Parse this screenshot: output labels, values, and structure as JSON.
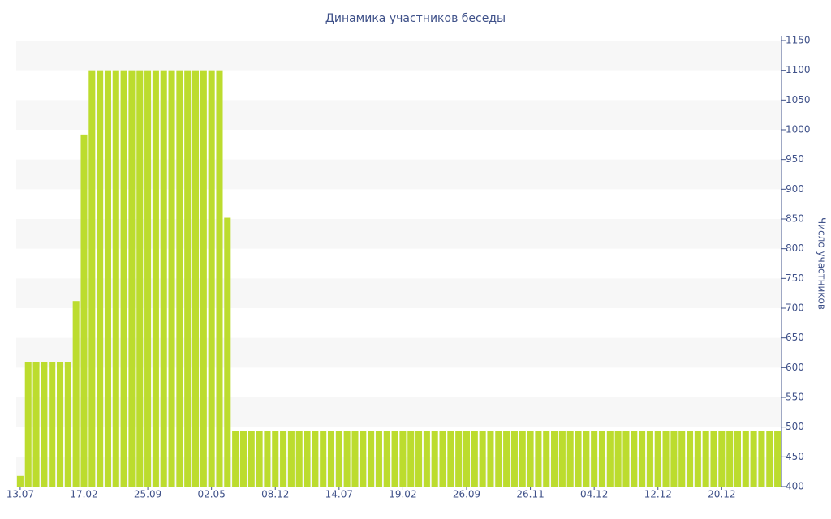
{
  "chart_data": {
    "type": "bar",
    "title": "Динамика участников беседы",
    "y_axis_label": "Число участников",
    "categories": [
      "13.07",
      null,
      null,
      null,
      null,
      null,
      null,
      null,
      "17.02",
      null,
      null,
      null,
      null,
      null,
      null,
      null,
      "25.09",
      null,
      null,
      null,
      null,
      null,
      null,
      null,
      "02.05",
      null,
      null,
      null,
      null,
      null,
      null,
      null,
      "08.12",
      null,
      null,
      null,
      null,
      null,
      null,
      null,
      "14.07",
      null,
      null,
      null,
      null,
      null,
      null,
      null,
      "19.02",
      null,
      null,
      null,
      null,
      null,
      null,
      null,
      "26.09",
      null,
      null,
      null,
      null,
      null,
      null,
      null,
      "26.11",
      null,
      null,
      null,
      null,
      null,
      null,
      null,
      "04.12",
      null,
      null,
      null,
      null,
      null,
      null,
      null,
      "12.12",
      null,
      null,
      null,
      null,
      null,
      null,
      null,
      "20.12",
      null,
      null,
      null,
      null,
      null,
      null,
      null
    ],
    "values": [
      418,
      610,
      610,
      610,
      610,
      610,
      610,
      712,
      992,
      1100,
      1100,
      1100,
      1100,
      1100,
      1100,
      1100,
      1100,
      1100,
      1100,
      1100,
      1100,
      1100,
      1100,
      1100,
      1100,
      1100,
      852,
      493,
      493,
      493,
      493,
      493,
      493,
      493,
      493,
      493,
      493,
      493,
      493,
      493,
      493,
      493,
      493,
      493,
      493,
      493,
      493,
      493,
      493,
      493,
      493,
      493,
      493,
      493,
      493,
      493,
      493,
      493,
      493,
      493,
      493,
      493,
      493,
      493,
      493,
      493,
      493,
      493,
      493,
      493,
      493,
      493,
      493,
      493,
      493,
      493,
      493,
      493,
      493,
      493,
      493,
      493,
      493,
      493,
      493,
      493,
      493,
      493,
      493,
      493,
      493,
      493,
      493,
      493,
      493,
      493
    ],
    "color": "#bcdc2e",
    "ylim": [
      400,
      1150
    ],
    "yticks": [
      400,
      450,
      500,
      550,
      600,
      650,
      700,
      750,
      800,
      850,
      900,
      950,
      1000,
      1050,
      1100,
      1150
    ],
    "y_axis_side": "right",
    "grid": "bands"
  }
}
